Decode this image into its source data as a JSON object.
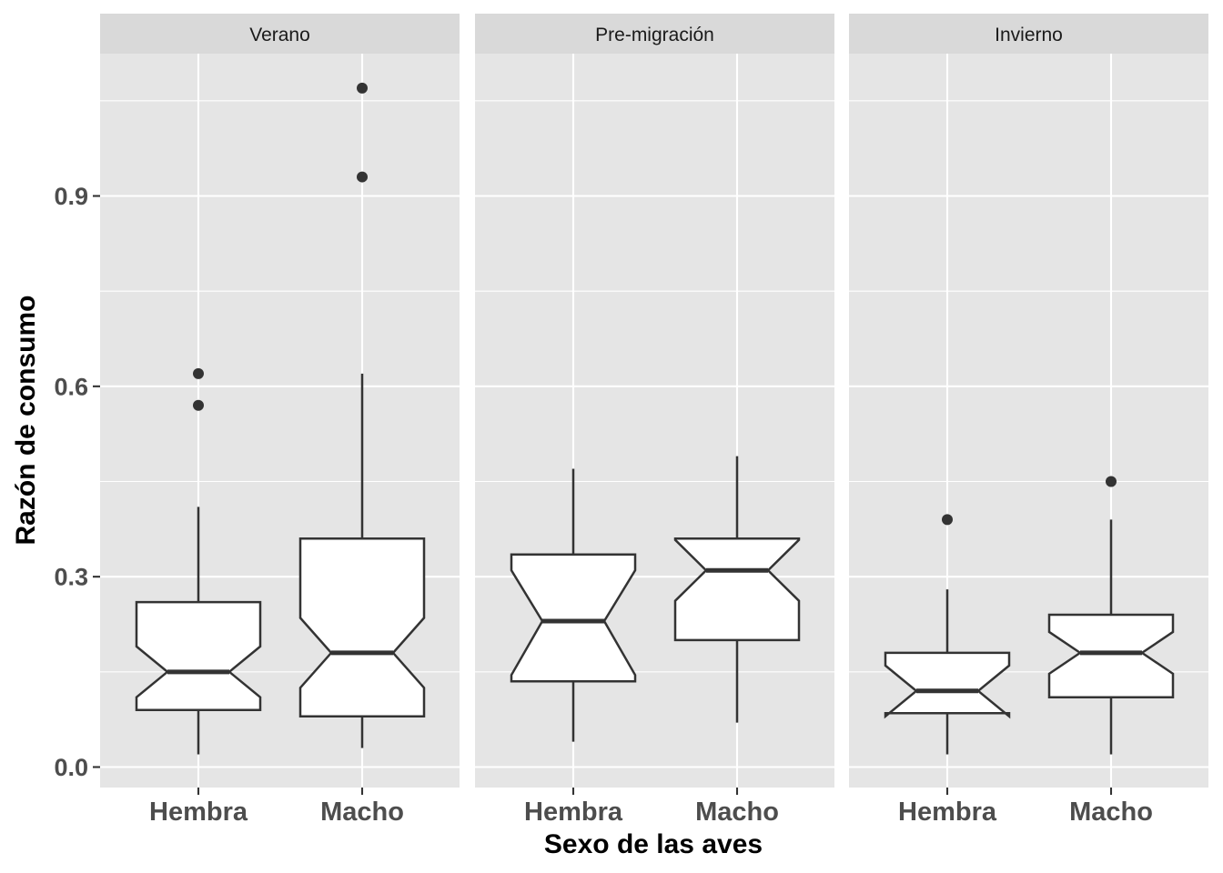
{
  "chart_data": {
    "type": "boxplot",
    "notched": true,
    "title": "",
    "xlabel": "Sexo de las aves",
    "ylabel": "Razón de consumo",
    "ylim": [
      -0.03,
      1.13
    ],
    "y_ticks": [
      0.0,
      0.3,
      0.6,
      0.9
    ],
    "y_tick_labels": [
      "0.0",
      "0.3",
      "0.6",
      "0.9"
    ],
    "y_minor_ticks": [
      0.15,
      0.45,
      0.75,
      1.05
    ],
    "grid": true,
    "facet_by": "season",
    "categories": [
      "Hembra",
      "Macho"
    ],
    "panels": [
      {
        "label": "Verano",
        "boxes": [
          {
            "category": "Hembra",
            "min": 0.02,
            "q1": 0.09,
            "median": 0.15,
            "q3": 0.26,
            "max": 0.41,
            "notch_low": 0.11,
            "notch_high": 0.19,
            "outliers": [
              0.57,
              0.62
            ]
          },
          {
            "category": "Macho",
            "min": 0.03,
            "q1": 0.08,
            "median": 0.18,
            "q3": 0.36,
            "max": 0.62,
            "notch_low": 0.125,
            "notch_high": 0.235,
            "outliers": [
              0.93,
              1.07
            ]
          }
        ]
      },
      {
        "label": "Pre-migración",
        "boxes": [
          {
            "category": "Hembra",
            "min": 0.04,
            "q1": 0.135,
            "median": 0.23,
            "q3": 0.335,
            "max": 0.47,
            "notch_low": 0.145,
            "notch_high": 0.31,
            "outliers": []
          },
          {
            "category": "Macho",
            "min": 0.07,
            "q1": 0.2,
            "median": 0.31,
            "q3": 0.36,
            "max": 0.49,
            "notch_low": 0.262,
            "notch_high": 0.358,
            "outliers": []
          }
        ]
      },
      {
        "label": "Invierno",
        "boxes": [
          {
            "category": "Hembra",
            "min": 0.02,
            "q1": 0.085,
            "median": 0.12,
            "q3": 0.18,
            "max": 0.28,
            "notch_low": 0.08,
            "notch_high": 0.16,
            "outliers": [
              0.39
            ]
          },
          {
            "category": "Macho",
            "min": 0.02,
            "q1": 0.11,
            "median": 0.18,
            "q3": 0.24,
            "max": 0.39,
            "notch_low": 0.147,
            "notch_high": 0.213,
            "outliers": [
              0.45
            ]
          }
        ]
      }
    ]
  }
}
